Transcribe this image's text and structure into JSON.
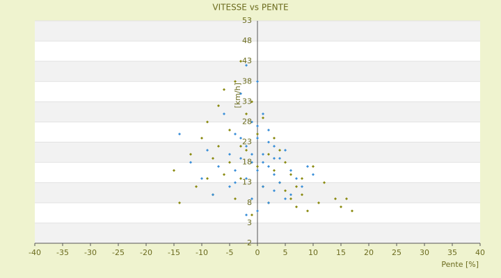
{
  "chart_data": {
    "type": "scatter",
    "title": "VITESSE vs PENTE",
    "x_label": "Pente [%]",
    "y_label": "[km/h]",
    "xlim": [
      -40,
      40
    ],
    "xticks": [
      -40,
      -35,
      -30,
      -25,
      -20,
      -15,
      -10,
      -5,
      0,
      5,
      10,
      15,
      20,
      25,
      30,
      35,
      40
    ],
    "ylim": [
      -2,
      53
    ],
    "yticks": [
      -2,
      3,
      8,
      13,
      18,
      23,
      28,
      33,
      38,
      43,
      48,
      53
    ],
    "grid": true,
    "series": [
      {
        "color": "#8a8a10",
        "x": [
          -15,
          -14,
          -12,
          -11,
          -10,
          -9,
          -9,
          -8,
          -8,
          -7,
          -7,
          -6,
          -6,
          -5,
          -5,
          -4,
          -4,
          -3,
          -3,
          -2,
          -2,
          -1,
          -1,
          0,
          0,
          1,
          1,
          2,
          2,
          3,
          3,
          4,
          4,
          5,
          5,
          6,
          6,
          7,
          7,
          8,
          8,
          9,
          10,
          11,
          12,
          14,
          15,
          16,
          17,
          -3
        ],
        "values": [
          16,
          8,
          20,
          12,
          24,
          14,
          28,
          10,
          19,
          32,
          22,
          15,
          36,
          18,
          26,
          9,
          38,
          43,
          14,
          30,
          21,
          5,
          33,
          17,
          25,
          12,
          29,
          20,
          8,
          24,
          16,
          13,
          21,
          11,
          18,
          9,
          15,
          12,
          7,
          10,
          14,
          6,
          17,
          8,
          13,
          9,
          7,
          9,
          6,
          22
        ]
      },
      {
        "color": "#3b8fd8",
        "x": [
          -14,
          -12,
          -10,
          -9,
          -8,
          -7,
          -6,
          -5,
          -5,
          -4,
          -4,
          -3,
          -3,
          -2,
          -2,
          -2,
          -1,
          -1,
          -1,
          0,
          0,
          0,
          0,
          1,
          1,
          1,
          2,
          2,
          2,
          3,
          3,
          3,
          4,
          4,
          5,
          5,
          6,
          6,
          7,
          8,
          9,
          10,
          -3,
          -1,
          1,
          2,
          -4,
          0,
          3,
          -2
        ],
        "values": [
          25,
          18,
          14,
          21,
          10,
          17,
          30,
          20,
          12,
          25,
          16,
          35,
          19,
          42,
          22,
          14,
          28,
          18,
          9,
          38,
          24,
          16,
          6,
          30,
          20,
          12,
          26,
          17,
          8,
          22,
          15,
          11,
          19,
          13,
          21,
          9,
          16,
          10,
          14,
          12,
          17,
          15,
          24,
          20,
          18,
          23,
          13,
          27,
          19,
          5
        ]
      }
    ]
  }
}
